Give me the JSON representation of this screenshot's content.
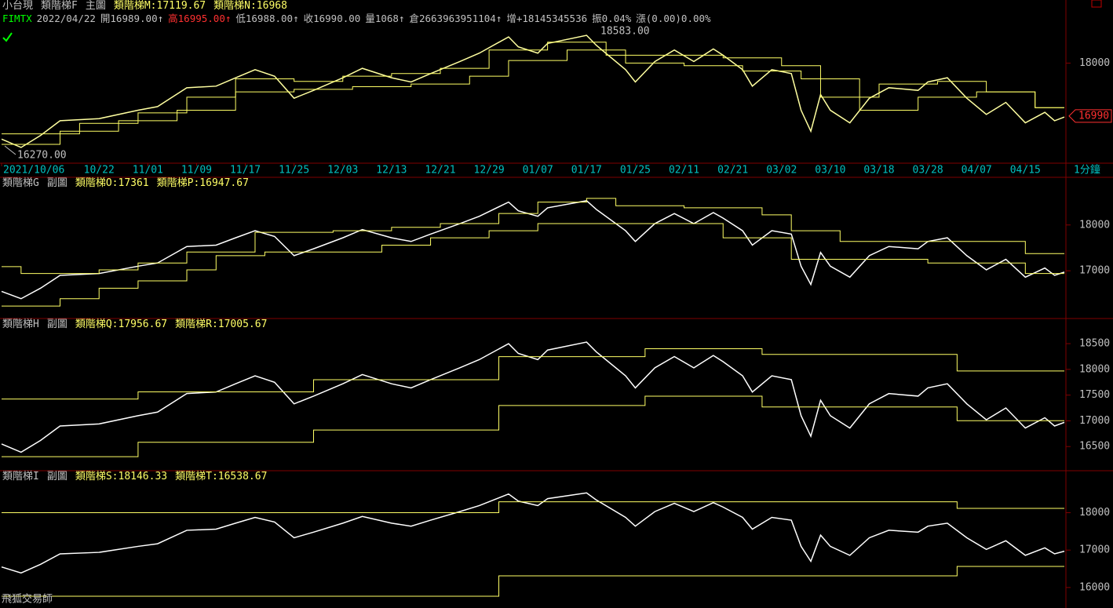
{
  "chart_data": [
    {
      "type": "line",
      "labels": [
        "小台現",
        "類階梯F",
        "主圖"
      ],
      "status": [
        "FIMTX",
        "2022/04/22",
        "開16989.00↑",
        "高16995.00↑",
        "低16988.00↑",
        "收16990.00",
        "量1068↑",
        "倉2663963951104↑",
        "增+18145345536",
        "振0.04%",
        "漲(0.00)0.00%"
      ],
      "high_label": "18583.00",
      "low_label": "16270.00",
      "last_label": 16990,
      "interval_label": "1分鐘",
      "xlim": [
        0,
        109
      ],
      "ylim": [
        16135,
        18755
      ],
      "yticks": [
        18000
      ],
      "xticks": [
        {
          "value": 0,
          "label": "2021/10/06"
        },
        {
          "value": 10,
          "label": "10/22"
        },
        {
          "value": 15,
          "label": "11/01"
        },
        {
          "value": 20,
          "label": "11/09"
        },
        {
          "value": 25,
          "label": "11/17"
        },
        {
          "value": 30,
          "label": "11/25"
        },
        {
          "value": 35,
          "label": "12/03"
        },
        {
          "value": 40,
          "label": "12/13"
        },
        {
          "value": 45,
          "label": "12/21"
        },
        {
          "value": 50,
          "label": "12/29"
        },
        {
          "value": 55,
          "label": "01/07"
        },
        {
          "value": 60,
          "label": "01/17"
        },
        {
          "value": 65,
          "label": "01/25"
        },
        {
          "value": 70,
          "label": "02/11"
        },
        {
          "value": 75,
          "label": "02/21"
        },
        {
          "value": 80,
          "label": "03/02"
        },
        {
          "value": 85,
          "label": "03/10"
        },
        {
          "value": 90,
          "label": "03/18"
        },
        {
          "value": 95,
          "label": "03/28"
        },
        {
          "value": 100,
          "label": "04/07"
        },
        {
          "value": 105,
          "label": "04/15"
        }
      ],
      "series": [
        {
          "color": "#ffffa0",
          "x": [
            0,
            2,
            4,
            6,
            10,
            14,
            16,
            19,
            22,
            24,
            26,
            28,
            30,
            32,
            35,
            37,
            40,
            42,
            44,
            47,
            49,
            52,
            53,
            55,
            56,
            60,
            61,
            64,
            65,
            67,
            69,
            71,
            73,
            74,
            76,
            77,
            79,
            81,
            82,
            83,
            84,
            85,
            87,
            89,
            91,
            94,
            95,
            97,
            99,
            101,
            103,
            105,
            107,
            108,
            109
          ],
          "values": [
            16550,
            16390,
            16620,
            16900,
            16940,
            17100,
            17170,
            17530,
            17560,
            17720,
            17875,
            17750,
            17330,
            17480,
            17720,
            17900,
            17720,
            17640,
            17800,
            18030,
            18190,
            18500,
            18310,
            18190,
            18375,
            18530,
            18340,
            17875,
            17640,
            18030,
            18250,
            18030,
            18270,
            18150,
            17875,
            17560,
            17875,
            17800,
            17100,
            16700,
            17400,
            17100,
            16860,
            17330,
            17530,
            17480,
            17640,
            17720,
            17330,
            17020,
            17250,
            16860,
            17060,
            16900,
            16970
          ]
        },
        {
          "name": "類階梯M:17119.67",
          "color": "#ffff66",
          "step": true,
          "x": [
            0,
            8,
            14,
            19,
            24,
            30,
            35,
            40,
            45,
            50,
            56,
            62,
            68,
            74,
            80,
            84,
            90,
            96,
            101,
            106
          ],
          "values": [
            16650,
            16850,
            17050,
            17350,
            17700,
            17650,
            17750,
            17800,
            17900,
            18250,
            18400,
            18150,
            18150,
            18100,
            17950,
            17350,
            17600,
            17650,
            17450,
            17150
          ]
        },
        {
          "name": "類階梯N:16968",
          "color": "#ffff66",
          "step": true,
          "x": [
            0,
            6,
            12,
            18,
            24,
            30,
            36,
            42,
            48,
            52,
            58,
            64,
            70,
            76,
            82,
            88,
            94,
            100,
            106
          ],
          "values": [
            16450,
            16700,
            16900,
            17100,
            17450,
            17500,
            17550,
            17600,
            17750,
            18050,
            18250,
            18000,
            17950,
            17850,
            17700,
            17100,
            17350,
            17450,
            17150
          ]
        }
      ]
    },
    {
      "type": "line",
      "labels": [
        "類階梯G",
        "副圖"
      ],
      "xlim": [
        0,
        109
      ],
      "ylim": [
        16060,
        18870
      ],
      "yticks": [
        17000,
        18000
      ],
      "series": [
        {
          "color": "#ffffff",
          "x": [
            0,
            2,
            4,
            6,
            10,
            14,
            16,
            19,
            22,
            24,
            26,
            28,
            30,
            32,
            35,
            37,
            40,
            42,
            44,
            47,
            49,
            52,
            53,
            55,
            56,
            60,
            61,
            64,
            65,
            67,
            69,
            71,
            73,
            74,
            76,
            77,
            79,
            81,
            82,
            83,
            84,
            85,
            87,
            89,
            91,
            94,
            95,
            97,
            99,
            101,
            103,
            105,
            107,
            108,
            109
          ],
          "values": [
            16550,
            16390,
            16620,
            16900,
            16940,
            17100,
            17170,
            17530,
            17560,
            17720,
            17875,
            17750,
            17330,
            17480,
            17720,
            17900,
            17720,
            17640,
            17800,
            18030,
            18190,
            18500,
            18310,
            18190,
            18375,
            18530,
            18340,
            17875,
            17640,
            18030,
            18250,
            18030,
            18270,
            18150,
            17875,
            17560,
            17875,
            17800,
            17100,
            16700,
            17400,
            17100,
            16860,
            17330,
            17530,
            17480,
            17640,
            17720,
            17330,
            17020,
            17250,
            16860,
            17060,
            16900,
            16970
          ]
        },
        {
          "name": "類階梯O:17361",
          "color": "#ffff66",
          "step": true,
          "x": [
            0,
            2,
            10,
            14,
            19,
            26,
            34,
            40,
            45,
            51,
            55,
            60,
            63,
            70,
            78,
            81,
            86,
            105
          ],
          "values": [
            17090,
            16940,
            17020,
            17170,
            17410,
            17840,
            17875,
            17950,
            18030,
            18250,
            18500,
            18580,
            18420,
            18375,
            18220,
            17875,
            17640,
            17375
          ]
        },
        {
          "name": "類階梯P:16947.67",
          "color": "#ffff66",
          "step": true,
          "x": [
            0,
            6,
            10,
            14,
            19,
            22,
            27,
            39,
            44,
            50,
            55,
            74,
            81,
            95,
            105
          ],
          "values": [
            16230,
            16390,
            16620,
            16780,
            17020,
            17330,
            17410,
            17560,
            17720,
            17875,
            18030,
            17720,
            17250,
            17170,
            16940
          ]
        }
      ]
    },
    {
      "type": "line",
      "labels": [
        "類階梯H",
        "副圖"
      ],
      "xlim": [
        0,
        109
      ],
      "ylim": [
        16122,
        18836
      ],
      "yticks": [
        16500,
        17000,
        17500,
        18000,
        18500
      ],
      "series": [
        {
          "color": "#ffffff",
          "x": [
            0,
            2,
            4,
            6,
            10,
            14,
            16,
            19,
            22,
            24,
            26,
            28,
            30,
            32,
            35,
            37,
            40,
            42,
            44,
            47,
            49,
            52,
            53,
            55,
            56,
            60,
            61,
            64,
            65,
            67,
            69,
            71,
            73,
            74,
            76,
            77,
            79,
            81,
            82,
            83,
            84,
            85,
            87,
            89,
            91,
            94,
            95,
            97,
            99,
            101,
            103,
            105,
            107,
            108,
            109
          ],
          "values": [
            16550,
            16390,
            16620,
            16900,
            16940,
            17100,
            17170,
            17530,
            17560,
            17720,
            17875,
            17750,
            17330,
            17480,
            17720,
            17900,
            17720,
            17640,
            17800,
            18030,
            18190,
            18500,
            18310,
            18190,
            18375,
            18530,
            18340,
            17875,
            17640,
            18030,
            18250,
            18030,
            18270,
            18150,
            17875,
            17560,
            17875,
            17800,
            17100,
            16700,
            17400,
            17100,
            16860,
            17330,
            17530,
            17480,
            17640,
            17720,
            17330,
            17020,
            17250,
            16860,
            17060,
            16900,
            16970
          ]
        },
        {
          "name": "類階梯Q:17956.67",
          "color": "#ffff66",
          "step": true,
          "x": [
            0,
            14,
            32,
            51,
            66,
            78,
            98
          ],
          "values": [
            17423,
            17563,
            17800,
            18248,
            18402,
            18290,
            17969
          ]
        },
        {
          "name": "類階梯R:17005.67",
          "color": "#ffff66",
          "step": true,
          "x": [
            0,
            14,
            32,
            51,
            66,
            78,
            98
          ],
          "values": [
            16304,
            16584,
            16822,
            17297,
            17479,
            17269,
            17003
          ]
        }
      ]
    },
    {
      "type": "line",
      "labels": [
        "類階梯I",
        "副圖"
      ],
      "watermark": "飛狐交易師",
      "xlim": [
        0,
        109
      ],
      "ylim": [
        15515,
        18913
      ],
      "yticks": [
        16000,
        17000,
        18000
      ],
      "series": [
        {
          "color": "#ffffff",
          "x": [
            0,
            2,
            4,
            6,
            10,
            14,
            16,
            19,
            22,
            24,
            26,
            28,
            30,
            32,
            35,
            37,
            40,
            42,
            44,
            47,
            49,
            52,
            53,
            55,
            56,
            60,
            61,
            64,
            65,
            67,
            69,
            71,
            73,
            74,
            76,
            77,
            79,
            81,
            82,
            83,
            84,
            85,
            87,
            89,
            91,
            94,
            95,
            97,
            99,
            101,
            103,
            105,
            107,
            108,
            109
          ],
          "values": [
            16550,
            16390,
            16620,
            16900,
            16940,
            17100,
            17170,
            17530,
            17560,
            17720,
            17875,
            17750,
            17330,
            17480,
            17720,
            17900,
            17720,
            17640,
            17800,
            18030,
            18190,
            18500,
            18310,
            18190,
            18375,
            18530,
            18340,
            17875,
            17640,
            18030,
            18250,
            18030,
            18270,
            18150,
            17875,
            17560,
            17875,
            17800,
            17100,
            16700,
            17400,
            17100,
            16860,
            17330,
            17530,
            17480,
            17640,
            17720,
            17330,
            17020,
            17250,
            16860,
            17060,
            16900,
            16970
          ]
        },
        {
          "name": "類階梯S:18146.33",
          "color": "#ffff66",
          "step": true,
          "x": [
            0,
            51,
            98
          ],
          "values": [
            18000,
            18291,
            18117
          ]
        },
        {
          "name": "類階梯T:16538.67",
          "color": "#ffff66",
          "step": true,
          "x": [
            0,
            51,
            98
          ],
          "values": [
            15767,
            16311,
            16563
          ]
        }
      ]
    }
  ]
}
